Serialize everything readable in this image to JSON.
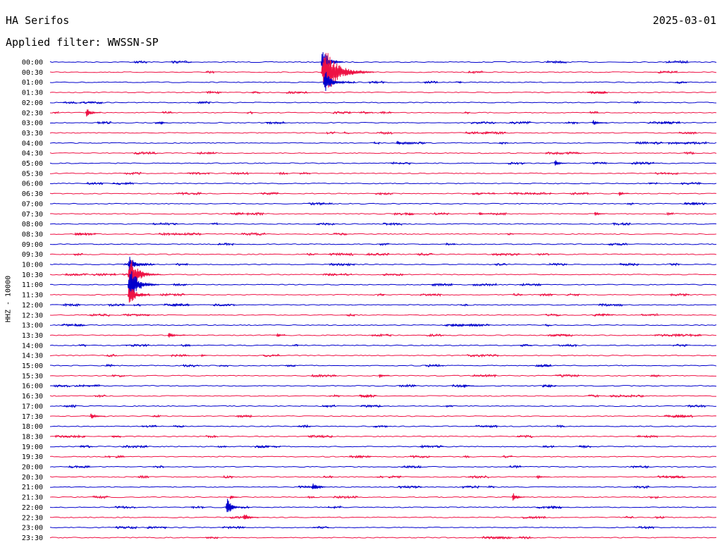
{
  "header": {
    "station": "HA Serifos",
    "date": "2025-03-01",
    "filter": "Applied filter: WWSSN-SP",
    "channel": "HHZ - 10000"
  },
  "chart_data": {
    "type": "line",
    "title": "HA Serifos",
    "subtitle": "Applied filter: WWSSN-SP",
    "ylabel": "HHZ - 10000",
    "colors": [
      "#0000cc",
      "#ee1144"
    ],
    "row_labels": [
      "00:00",
      "00:30",
      "01:00",
      "01:30",
      "02:00",
      "02:30",
      "03:00",
      "03:30",
      "04:00",
      "04:30",
      "05:00",
      "05:30",
      "06:00",
      "06:30",
      "07:00",
      "07:30",
      "08:00",
      "08:30",
      "09:00",
      "09:30",
      "10:00",
      "10:30",
      "11:00",
      "11:30",
      "12:00",
      "12:30",
      "13:00",
      "13:30",
      "14:00",
      "14:30",
      "15:00",
      "15:30",
      "16:00",
      "16:30",
      "17:00",
      "17:30",
      "18:00",
      "18:30",
      "19:00",
      "19:30",
      "20:00",
      "20:30",
      "21:00",
      "21:30",
      "22:00",
      "22:30",
      "23:00",
      "23:30"
    ],
    "x_range_minutes": [
      0,
      30
    ],
    "events": [
      {
        "row": 0,
        "minute": 12.2,
        "amplitude": 2.0,
        "duration": 1.0
      },
      {
        "row": 1,
        "minute": 12.2,
        "amplitude": 3.0,
        "duration": 2.4
      },
      {
        "row": 2,
        "minute": 12.3,
        "amplitude": 1.6,
        "duration": 1.0
      },
      {
        "row": 5,
        "minute": 1.6,
        "amplitude": 0.6,
        "duration": 0.7
      },
      {
        "row": 6,
        "minute": 5.0,
        "amplitude": 0.25,
        "duration": 0.3
      },
      {
        "row": 6,
        "minute": 24.4,
        "amplitude": 0.35,
        "duration": 0.7
      },
      {
        "row": 8,
        "minute": 15.6,
        "amplitude": 0.3,
        "duration": 0.5
      },
      {
        "row": 10,
        "minute": 22.7,
        "amplitude": 0.45,
        "duration": 0.6
      },
      {
        "row": 13,
        "minute": 25.6,
        "amplitude": 0.3,
        "duration": 0.5
      },
      {
        "row": 15,
        "minute": 19.3,
        "amplitude": 0.3,
        "duration": 0.4
      },
      {
        "row": 15,
        "minute": 24.5,
        "amplitude": 0.3,
        "duration": 0.5
      },
      {
        "row": 20,
        "minute": 3.5,
        "amplitude": 1.0,
        "duration": 1.0
      },
      {
        "row": 21,
        "minute": 3.5,
        "amplitude": 2.0,
        "duration": 1.5
      },
      {
        "row": 22,
        "minute": 3.5,
        "amplitude": 2.2,
        "duration": 1.4
      },
      {
        "row": 23,
        "minute": 3.5,
        "amplitude": 1.5,
        "duration": 1.0
      },
      {
        "row": 27,
        "minute": 5.3,
        "amplitude": 0.35,
        "duration": 0.8
      },
      {
        "row": 27,
        "minute": 10.2,
        "amplitude": 0.2,
        "duration": 0.4
      },
      {
        "row": 29,
        "minute": 6.8,
        "amplitude": 0.2,
        "duration": 0.3
      },
      {
        "row": 31,
        "minute": 14.8,
        "amplitude": 0.25,
        "duration": 0.5
      },
      {
        "row": 32,
        "minute": 18.6,
        "amplitude": 0.2,
        "duration": 0.5
      },
      {
        "row": 35,
        "minute": 1.8,
        "amplitude": 0.4,
        "duration": 0.7
      },
      {
        "row": 41,
        "minute": 21.9,
        "amplitude": 0.2,
        "duration": 0.6
      },
      {
        "row": 42,
        "minute": 11.8,
        "amplitude": 0.6,
        "duration": 0.6
      },
      {
        "row": 43,
        "minute": 20.8,
        "amplitude": 0.6,
        "duration": 0.6
      },
      {
        "row": 43,
        "minute": 8.1,
        "amplitude": 0.4,
        "duration": 0.4
      },
      {
        "row": 44,
        "minute": 7.9,
        "amplitude": 1.2,
        "duration": 0.8
      },
      {
        "row": 45,
        "minute": 8.7,
        "amplitude": 0.6,
        "duration": 0.7
      }
    ]
  }
}
